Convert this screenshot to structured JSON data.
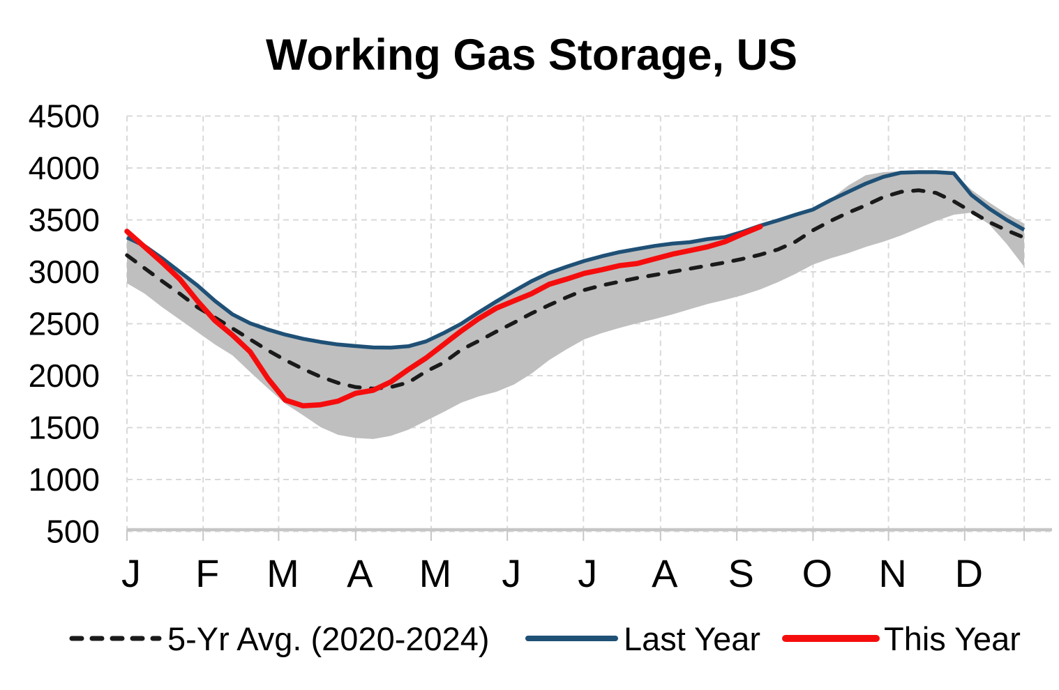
{
  "title": "Working Gas Storage, US",
  "legend": {
    "avg_label": "5-Yr Avg. (2020-2024)",
    "last_year_label": "Last Year",
    "this_year_label": "This Year"
  },
  "colors": {
    "avg": "#1A1A1A",
    "last_year": "#1F5076",
    "this_year": "#F50D0D",
    "band": "#BFBFBF",
    "grid": "#D9D9D9",
    "axis": "#C6C6C6",
    "text": "#000000"
  },
  "axes": {
    "y_ticks": [
      4500,
      4000,
      3500,
      3000,
      2500,
      2000,
      1500,
      1000,
      500
    ],
    "x_ticks": [
      "J",
      "F",
      "M",
      "A",
      "M",
      "J",
      "J",
      "A",
      "S",
      "O",
      "N",
      "D"
    ]
  },
  "chart_data": {
    "type": "line",
    "title": "Working Gas Storage, US",
    "xlabel": "",
    "ylabel": "",
    "x_unit": "weekly, January through December",
    "ylim": [
      500,
      4500
    ],
    "y_tick_step": 500,
    "grid": true,
    "legend_position": "bottom",
    "month_week_index": [
      0,
      4.33,
      8.62,
      13.0,
      17.29,
      21.62,
      25.95,
      30.33,
      34.67,
      39.0,
      43.29,
      47.62,
      51
    ],
    "series": [
      {
        "name": "5-Yr Avg. (2020-2024)",
        "style": "dashed",
        "color": "#1A1A1A",
        "values": [
          3160,
          3035,
          2910,
          2790,
          2660,
          2560,
          2455,
          2350,
          2245,
          2150,
          2065,
          1990,
          1930,
          1890,
          1875,
          1890,
          1935,
          2040,
          2125,
          2250,
          2335,
          2425,
          2510,
          2600,
          2680,
          2755,
          2825,
          2870,
          2905,
          2940,
          2970,
          3000,
          3030,
          3060,
          3090,
          3125,
          3165,
          3215,
          3290,
          3400,
          3490,
          3570,
          3640,
          3720,
          3770,
          3785,
          3760,
          3680,
          3580,
          3480,
          3400,
          3330
        ]
      },
      {
        "name": "Last Year",
        "style": "solid",
        "color": "#1F5076",
        "values": [
          3330,
          3250,
          3130,
          3000,
          2870,
          2720,
          2590,
          2505,
          2445,
          2395,
          2355,
          2325,
          2300,
          2285,
          2272,
          2270,
          2283,
          2330,
          2410,
          2500,
          2610,
          2715,
          2815,
          2910,
          2990,
          3050,
          3105,
          3150,
          3190,
          3220,
          3250,
          3272,
          3285,
          3315,
          3335,
          3385,
          3445,
          3495,
          3550,
          3600,
          3690,
          3770,
          3850,
          3915,
          3955,
          3960,
          3960,
          3950,
          3740,
          3610,
          3500,
          3405
        ]
      },
      {
        "name": "This Year",
        "style": "solid",
        "color": "#F50D0D",
        "values": [
          3390,
          3240,
          3090,
          2930,
          2720,
          2530,
          2390,
          2230,
          1975,
          1765,
          1710,
          1720,
          1755,
          1830,
          1860,
          1940,
          2060,
          2170,
          2300,
          2430,
          2550,
          2650,
          2720,
          2790,
          2880,
          2930,
          2985,
          3020,
          3060,
          3080,
          3125,
          3170,
          3205,
          3240,
          3290,
          3365,
          3435
        ]
      }
    ],
    "band": {
      "name": "5-year min-max range (2020-2024)",
      "color": "#BFBFBF",
      "top": [
        3330,
        3250,
        3130,
        3000,
        2870,
        2720,
        2590,
        2505,
        2445,
        2395,
        2355,
        2325,
        2300,
        2285,
        2272,
        2270,
        2283,
        2330,
        2410,
        2500,
        2610,
        2715,
        2815,
        2910,
        2990,
        3050,
        3105,
        3150,
        3190,
        3220,
        3250,
        3272,
        3285,
        3315,
        3335,
        3385,
        3445,
        3495,
        3550,
        3600,
        3700,
        3830,
        3930,
        3960,
        3970,
        3970,
        3968,
        3955,
        3790,
        3670,
        3560,
        3465
      ],
      "bottom": [
        2890,
        2790,
        2660,
        2540,
        2420,
        2300,
        2195,
        2035,
        1880,
        1730,
        1620,
        1505,
        1430,
        1400,
        1390,
        1420,
        1480,
        1565,
        1650,
        1740,
        1800,
        1845,
        1915,
        2020,
        2150,
        2255,
        2350,
        2410,
        2460,
        2505,
        2545,
        2590,
        2640,
        2690,
        2730,
        2775,
        2830,
        2900,
        2980,
        3070,
        3130,
        3180,
        3240,
        3290,
        3350,
        3420,
        3490,
        3550,
        3570,
        3460,
        3270,
        3050
      ]
    }
  }
}
